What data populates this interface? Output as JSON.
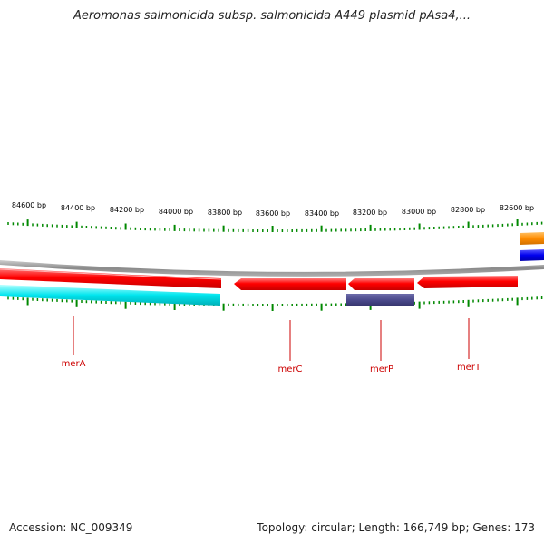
{
  "title": "Aeromonas salmonicida subsp. salmonicida A449 plasmid pAsa4,...",
  "footer": {
    "accession": "Accession: NC_009349",
    "summary": "Topology: circular; Length: 166,749 bp; Genes: 173"
  },
  "scale": {
    "unit": "bp",
    "tick_labels": [
      "84600 bp",
      "84400 bp",
      "84200 bp",
      "84000 bp",
      "83800 bp",
      "83600 bp",
      "83400 bp",
      "83200 bp",
      "83000 bp",
      "82800 bp",
      "82600 bp"
    ]
  },
  "colors": {
    "forward_gene": "#ff0000",
    "reverse_gene": "#ff0000",
    "cyan_track": "#00e5ee",
    "purple_track": "#4b4a8c",
    "orange_track": "#ff8c00",
    "blue_track": "#0000ee",
    "backbone": "#888888",
    "ticks": "#008800",
    "gene_label": "#cc0000"
  },
  "genes": [
    {
      "label": "merA"
    },
    {
      "label": "merC"
    },
    {
      "label": "merP"
    },
    {
      "label": "merT"
    }
  ]
}
